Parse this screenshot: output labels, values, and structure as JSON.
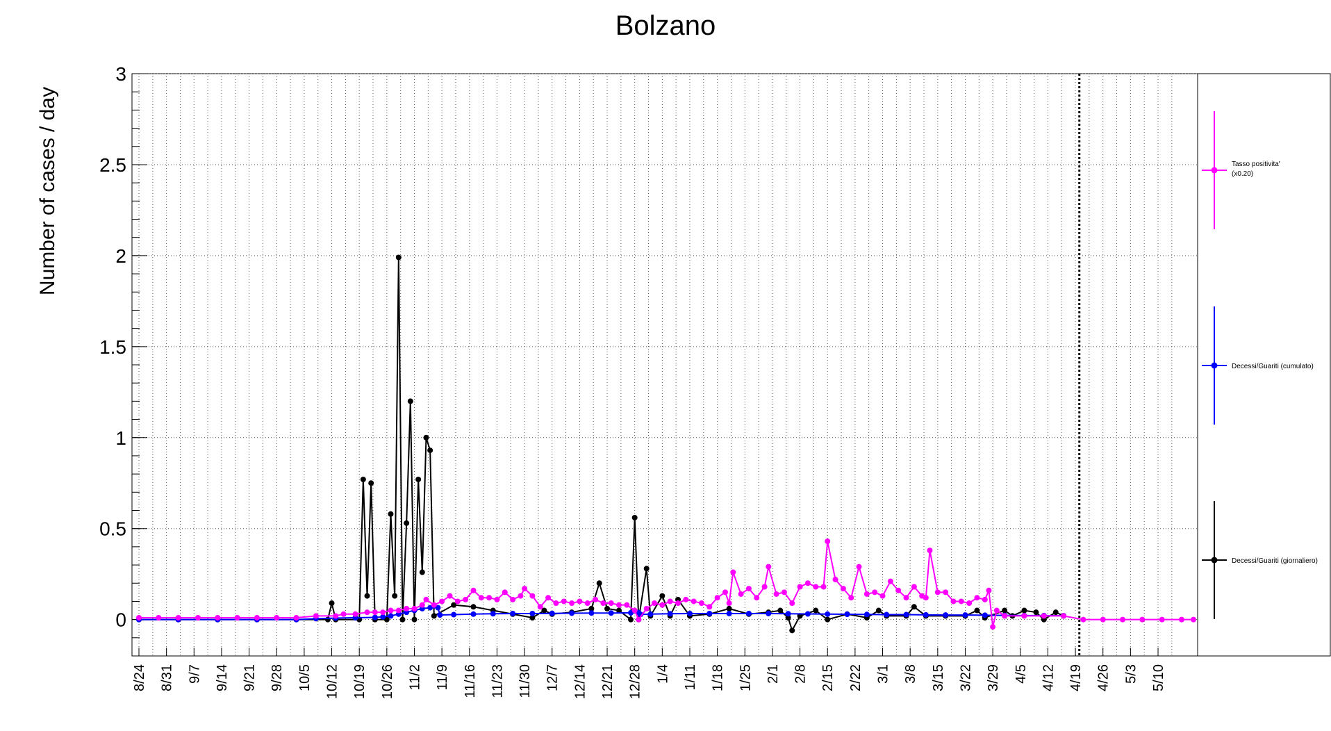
{
  "chart_data": {
    "type": "line",
    "title": "Bolzano",
    "ylabel": "Number of cases / day",
    "xlabel": "",
    "ylim": [
      -0.2,
      3.0
    ],
    "grid": true,
    "legend_placement": "right",
    "yticks": [
      "0",
      "0.5",
      "1",
      "1.5",
      "2",
      "2.5",
      "3"
    ],
    "categories": [
      "8/24",
      "8/31",
      "9/7",
      "9/14",
      "9/21",
      "9/28",
      "10/5",
      "10/12",
      "10/19",
      "10/26",
      "11/2",
      "11/9",
      "11/16",
      "11/23",
      "11/30",
      "12/7",
      "12/14",
      "12/21",
      "12/28",
      "1/4",
      "1/11",
      "1/18",
      "1/25",
      "2/1",
      "2/8",
      "2/15",
      "2/22",
      "3/1",
      "3/8",
      "3/15",
      "3/22",
      "3/29",
      "4/5",
      "4/12",
      "4/19",
      "4/26",
      "5/3",
      "5/10"
    ],
    "days_span": [
      0,
      268
    ],
    "last_data_day": 235,
    "marker_line_day": 239,
    "series": [
      {
        "name": "Tasso positivita' (x0.20)",
        "color": "#ff00ff",
        "points": [
          [
            0,
            0.01
          ],
          [
            5,
            0.01
          ],
          [
            10,
            0.01
          ],
          [
            15,
            0.01
          ],
          [
            20,
            0.01
          ],
          [
            25,
            0.01
          ],
          [
            30,
            0.01
          ],
          [
            35,
            0.01
          ],
          [
            40,
            0.01
          ],
          [
            45,
            0.02
          ],
          [
            50,
            0.02
          ],
          [
            52,
            0.03
          ],
          [
            55,
            0.03
          ],
          [
            58,
            0.04
          ],
          [
            60,
            0.04
          ],
          [
            62,
            0.04
          ],
          [
            64,
            0.05
          ],
          [
            66,
            0.05
          ],
          [
            68,
            0.06
          ],
          [
            70,
            0.06
          ],
          [
            72,
            0.08
          ],
          [
            73,
            0.11
          ],
          [
            75,
            0.08
          ],
          [
            77,
            0.1
          ],
          [
            79,
            0.13
          ],
          [
            81,
            0.1
          ],
          [
            83,
            0.11
          ],
          [
            85,
            0.16
          ],
          [
            87,
            0.12
          ],
          [
            89,
            0.12
          ],
          [
            91,
            0.11
          ],
          [
            93,
            0.15
          ],
          [
            95,
            0.11
          ],
          [
            97,
            0.13
          ],
          [
            98,
            0.17
          ],
          [
            100,
            0.13
          ],
          [
            102,
            0.07
          ],
          [
            104,
            0.12
          ],
          [
            106,
            0.09
          ],
          [
            108,
            0.1
          ],
          [
            110,
            0.09
          ],
          [
            112,
            0.1
          ],
          [
            114,
            0.09
          ],
          [
            116,
            0.11
          ],
          [
            118,
            0.09
          ],
          [
            120,
            0.09
          ],
          [
            122,
            0.08
          ],
          [
            124,
            0.08
          ],
          [
            126,
            0.05
          ],
          [
            127,
            0.0
          ],
          [
            129,
            0.06
          ],
          [
            131,
            0.09
          ],
          [
            133,
            0.08
          ],
          [
            135,
            0.1
          ],
          [
            137,
            0.09
          ],
          [
            139,
            0.11
          ],
          [
            141,
            0.1
          ],
          [
            143,
            0.09
          ],
          [
            145,
            0.07
          ],
          [
            147,
            0.12
          ],
          [
            149,
            0.15
          ],
          [
            150,
            0.09
          ],
          [
            151,
            0.26
          ],
          [
            153,
            0.14
          ],
          [
            155,
            0.17
          ],
          [
            157,
            0.12
          ],
          [
            159,
            0.18
          ],
          [
            160,
            0.29
          ],
          [
            162,
            0.14
          ],
          [
            164,
            0.15
          ],
          [
            166,
            0.09
          ],
          [
            168,
            0.18
          ],
          [
            170,
            0.2
          ],
          [
            172,
            0.18
          ],
          [
            174,
            0.18
          ],
          [
            175,
            0.43
          ],
          [
            177,
            0.22
          ],
          [
            179,
            0.17
          ],
          [
            181,
            0.12
          ],
          [
            183,
            0.29
          ],
          [
            185,
            0.14
          ],
          [
            187,
            0.15
          ],
          [
            189,
            0.13
          ],
          [
            191,
            0.21
          ],
          [
            193,
            0.16
          ],
          [
            195,
            0.12
          ],
          [
            197,
            0.18
          ],
          [
            199,
            0.13
          ],
          [
            200,
            0.12
          ],
          [
            201,
            0.38
          ],
          [
            203,
            0.15
          ],
          [
            205,
            0.15
          ],
          [
            207,
            0.1
          ],
          [
            209,
            0.1
          ],
          [
            211,
            0.09
          ],
          [
            213,
            0.12
          ],
          [
            215,
            0.11
          ],
          [
            216,
            0.16
          ],
          [
            217,
            -0.04
          ],
          [
            218,
            0.05
          ],
          [
            220,
            0.02
          ],
          [
            225,
            0.02
          ],
          [
            230,
            0.02
          ],
          [
            235,
            0.02
          ],
          [
            240,
            0.0
          ],
          [
            245,
            0.0
          ],
          [
            250,
            0.0
          ],
          [
            255,
            0.0
          ],
          [
            260,
            0.0
          ],
          [
            265,
            0.0
          ],
          [
            268,
            0.0
          ]
        ]
      },
      {
        "name": "Decessi/Guariti (cumulato)",
        "color": "#0000ff",
        "points": [
          [
            0,
            0.0
          ],
          [
            10,
            0.0
          ],
          [
            20,
            0.0
          ],
          [
            30,
            0.0
          ],
          [
            40,
            0.0
          ],
          [
            45,
            0.005
          ],
          [
            50,
            0.008
          ],
          [
            55,
            0.01
          ],
          [
            60,
            0.012
          ],
          [
            62,
            0.015
          ],
          [
            64,
            0.02
          ],
          [
            66,
            0.03
          ],
          [
            68,
            0.04
          ],
          [
            70,
            0.05
          ],
          [
            72,
            0.06
          ],
          [
            74,
            0.065
          ],
          [
            76,
            0.065
          ],
          [
            76.5,
            0.025
          ],
          [
            80,
            0.027
          ],
          [
            85,
            0.03
          ],
          [
            90,
            0.032
          ],
          [
            95,
            0.033
          ],
          [
            100,
            0.033
          ],
          [
            105,
            0.034
          ],
          [
            110,
            0.035
          ],
          [
            115,
            0.036
          ],
          [
            120,
            0.036
          ],
          [
            125,
            0.037
          ],
          [
            127,
            0.038
          ],
          [
            127.5,
            0.028
          ],
          [
            130,
            0.03
          ],
          [
            135,
            0.032
          ],
          [
            140,
            0.033
          ],
          [
            145,
            0.033
          ],
          [
            150,
            0.033
          ],
          [
            155,
            0.033
          ],
          [
            160,
            0.033
          ],
          [
            165,
            0.032
          ],
          [
            170,
            0.031
          ],
          [
            175,
            0.03
          ],
          [
            180,
            0.029
          ],
          [
            185,
            0.028
          ],
          [
            190,
            0.027
          ],
          [
            195,
            0.027
          ],
          [
            200,
            0.026
          ],
          [
            205,
            0.025
          ],
          [
            210,
            0.025
          ],
          [
            215,
            0.024
          ],
          [
            220,
            0.023
          ],
          [
            225,
            0.022
          ],
          [
            230,
            0.022
          ],
          [
            235,
            0.021
          ]
        ]
      },
      {
        "name": "Decessi/Guariti (giornaliero)",
        "color": "#000000",
        "points": [
          [
            0,
            0.0
          ],
          [
            10,
            0.0
          ],
          [
            20,
            0.0
          ],
          [
            30,
            0.0
          ],
          [
            40,
            0.0
          ],
          [
            48,
            0.0
          ],
          [
            49,
            0.09
          ],
          [
            50,
            0.0
          ],
          [
            56,
            0.0
          ],
          [
            57,
            0.77
          ],
          [
            58,
            0.13
          ],
          [
            59,
            0.75
          ],
          [
            60,
            0.0
          ],
          [
            63,
            0.0
          ],
          [
            64,
            0.58
          ],
          [
            65,
            0.13
          ],
          [
            66,
            1.99
          ],
          [
            67,
            0.0
          ],
          [
            68,
            0.53
          ],
          [
            69,
            1.2
          ],
          [
            70,
            0.0
          ],
          [
            71,
            0.77
          ],
          [
            72,
            0.26
          ],
          [
            73,
            1.0
          ],
          [
            74,
            0.93
          ],
          [
            75,
            0.02
          ],
          [
            80,
            0.08
          ],
          [
            85,
            0.07
          ],
          [
            90,
            0.05
          ],
          [
            95,
            0.03
          ],
          [
            100,
            0.01
          ],
          [
            103,
            0.05
          ],
          [
            105,
            0.03
          ],
          [
            110,
            0.04
          ],
          [
            115,
            0.06
          ],
          [
            117,
            0.2
          ],
          [
            119,
            0.06
          ],
          [
            122,
            0.05
          ],
          [
            125,
            0.0
          ],
          [
            126,
            0.56
          ],
          [
            127,
            0.0
          ],
          [
            129,
            0.28
          ],
          [
            130,
            0.02
          ],
          [
            133,
            0.13
          ],
          [
            135,
            0.02
          ],
          [
            137,
            0.11
          ],
          [
            140,
            0.02
          ],
          [
            145,
            0.03
          ],
          [
            150,
            0.06
          ],
          [
            155,
            0.03
          ],
          [
            160,
            0.04
          ],
          [
            163,
            0.05
          ],
          [
            165,
            0.01
          ],
          [
            166,
            -0.06
          ],
          [
            168,
            0.02
          ],
          [
            172,
            0.05
          ],
          [
            175,
            0.0
          ],
          [
            180,
            0.03
          ],
          [
            185,
            0.01
          ],
          [
            188,
            0.05
          ],
          [
            190,
            0.02
          ],
          [
            195,
            0.02
          ],
          [
            197,
            0.07
          ],
          [
            200,
            0.02
          ],
          [
            205,
            0.02
          ],
          [
            210,
            0.02
          ],
          [
            213,
            0.05
          ],
          [
            215,
            0.01
          ],
          [
            220,
            0.05
          ],
          [
            222,
            0.02
          ],
          [
            225,
            0.05
          ],
          [
            228,
            0.04
          ],
          [
            230,
            0.0
          ],
          [
            233,
            0.04
          ],
          [
            235,
            0.02
          ]
        ]
      }
    ]
  }
}
